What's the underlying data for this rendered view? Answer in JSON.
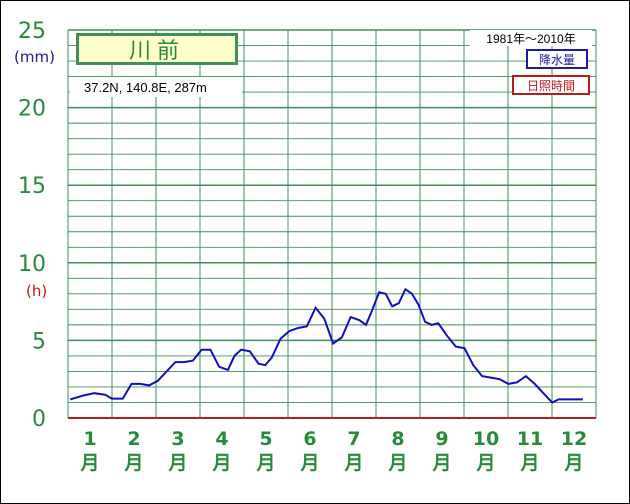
{
  "station": {
    "name": "川前",
    "coordinates": "37.2N,  140.8E,  287m",
    "period": "1981年～2010年"
  },
  "units": {
    "precipitation": "(mm)",
    "sunshine": "(h)"
  },
  "legend": {
    "precipitation": "降水量",
    "sunshine": "日照時間"
  },
  "colors": {
    "grid": "#3f8f5a",
    "axis_text": "#2a8a3c",
    "sunshine_line": "#1010c0",
    "precip_unit": "#1a1aa6",
    "sun_unit": "#c01818",
    "title_bg": "#ffffcc"
  },
  "chart_data": {
    "type": "line",
    "y_ticks": [
      "0",
      "5",
      "10",
      "15",
      "20",
      "25"
    ],
    "ylim": [
      0,
      25
    ],
    "grid": true,
    "legend_placement": "top-right",
    "months": [
      {
        "num": "1",
        "unit": "月"
      },
      {
        "num": "2",
        "unit": "月"
      },
      {
        "num": "3",
        "unit": "月"
      },
      {
        "num": "4",
        "unit": "月"
      },
      {
        "num": "5",
        "unit": "月"
      },
      {
        "num": "6",
        "unit": "月"
      },
      {
        "num": "7",
        "unit": "月"
      },
      {
        "num": "8",
        "unit": "月"
      },
      {
        "num": "9",
        "unit": "月"
      },
      {
        "num": "10",
        "unit": "月"
      },
      {
        "num": "11",
        "unit": "月"
      },
      {
        "num": "12",
        "unit": "月"
      }
    ],
    "series": [
      {
        "name": "日照時間",
        "x": [
          0.0,
          0.3,
          0.55,
          0.8,
          0.95,
          1.2,
          1.4,
          1.6,
          1.8,
          2.0,
          2.2,
          2.4,
          2.6,
          2.8,
          3.0,
          3.2,
          3.4,
          3.6,
          3.75,
          3.9,
          4.1,
          4.3,
          4.45,
          4.6,
          4.8,
          5.0,
          5.2,
          5.4,
          5.6,
          5.8,
          6.0,
          6.2,
          6.4,
          6.6,
          6.75,
          6.9,
          7.05,
          7.2,
          7.35,
          7.5,
          7.65,
          7.8,
          7.95,
          8.1,
          8.25,
          8.4,
          8.6,
          8.8,
          9.0,
          9.2,
          9.4,
          9.6,
          9.8,
          10.0,
          10.2,
          10.4,
          10.6,
          10.8,
          11.0,
          11.15,
          11.3,
          11.5,
          11.7
        ],
        "values": [
          1.2,
          1.45,
          1.6,
          1.5,
          1.25,
          1.25,
          2.2,
          2.2,
          2.1,
          2.4,
          3.0,
          3.6,
          3.6,
          3.7,
          4.4,
          4.4,
          3.3,
          3.1,
          4.0,
          4.4,
          4.3,
          3.5,
          3.4,
          3.9,
          5.1,
          5.6,
          5.8,
          5.9,
          7.1,
          6.4,
          4.8,
          5.2,
          6.5,
          6.3,
          6.0,
          7.0,
          8.1,
          8.0,
          7.2,
          7.4,
          8.3,
          8.0,
          7.3,
          6.2,
          6.0,
          6.1,
          5.3,
          4.6,
          4.5,
          3.4,
          2.7,
          2.6,
          2.5,
          2.2,
          2.3,
          2.7,
          2.2,
          1.6,
          1.0,
          1.2,
          1.2,
          1.2,
          1.2
        ]
      }
    ]
  }
}
